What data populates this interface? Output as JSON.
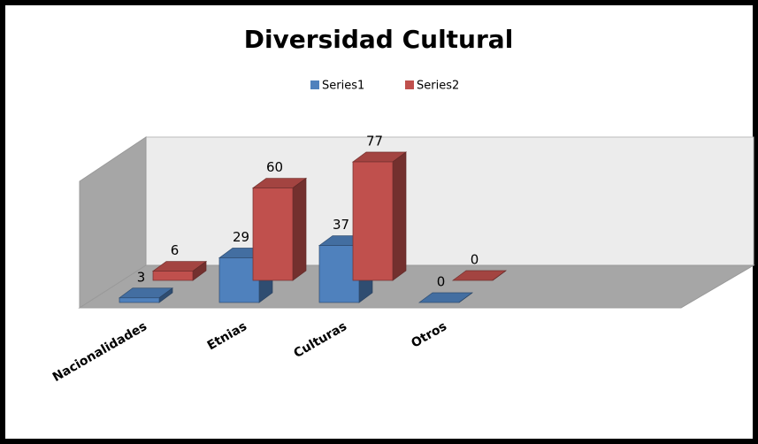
{
  "chart_data": {
    "type": "bar3d",
    "title": "Diversidad Cultural",
    "categories": [
      "Nacionalidades",
      "Etnias",
      "Culturas",
      "Otros"
    ],
    "series": [
      {
        "name": "Series1",
        "color": "#4f81bd",
        "values": [
          3,
          29,
          37,
          0
        ]
      },
      {
        "name": "Series2",
        "color": "#c0504d",
        "values": [
          6,
          60,
          77,
          0
        ]
      }
    ],
    "legend": "top"
  }
}
